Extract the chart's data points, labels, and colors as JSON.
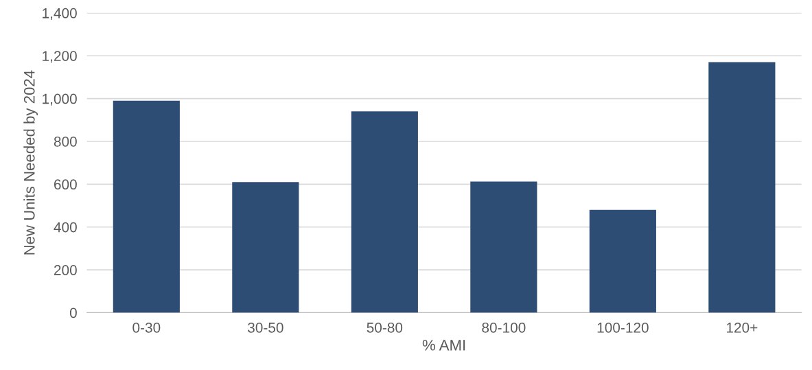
{
  "chart_data": {
    "type": "bar",
    "xlabel": "% AMI",
    "ylabel": "New Units Needed by 2024",
    "categories": [
      "0-30",
      "30-50",
      "50-80",
      "80-100",
      "100-120",
      "120+"
    ],
    "values": [
      990,
      610,
      940,
      612,
      480,
      1170
    ],
    "color": "#2e4d74",
    "ylim": [
      0,
      1400
    ],
    "yticks": [
      0,
      {
        "value": 200,
        "label": "200"
      },
      {
        "value": 400,
        "label": "400"
      },
      {
        "value": 600,
        "label": "600"
      },
      {
        "value": 800,
        "label": "800"
      },
      {
        "value": 1000,
        "label": "1,000"
      },
      {
        "value": 1200,
        "label": "1,200"
      },
      {
        "value": 1400,
        "label": "1,400"
      }
    ],
    "grid": "y",
    "legend": false
  }
}
